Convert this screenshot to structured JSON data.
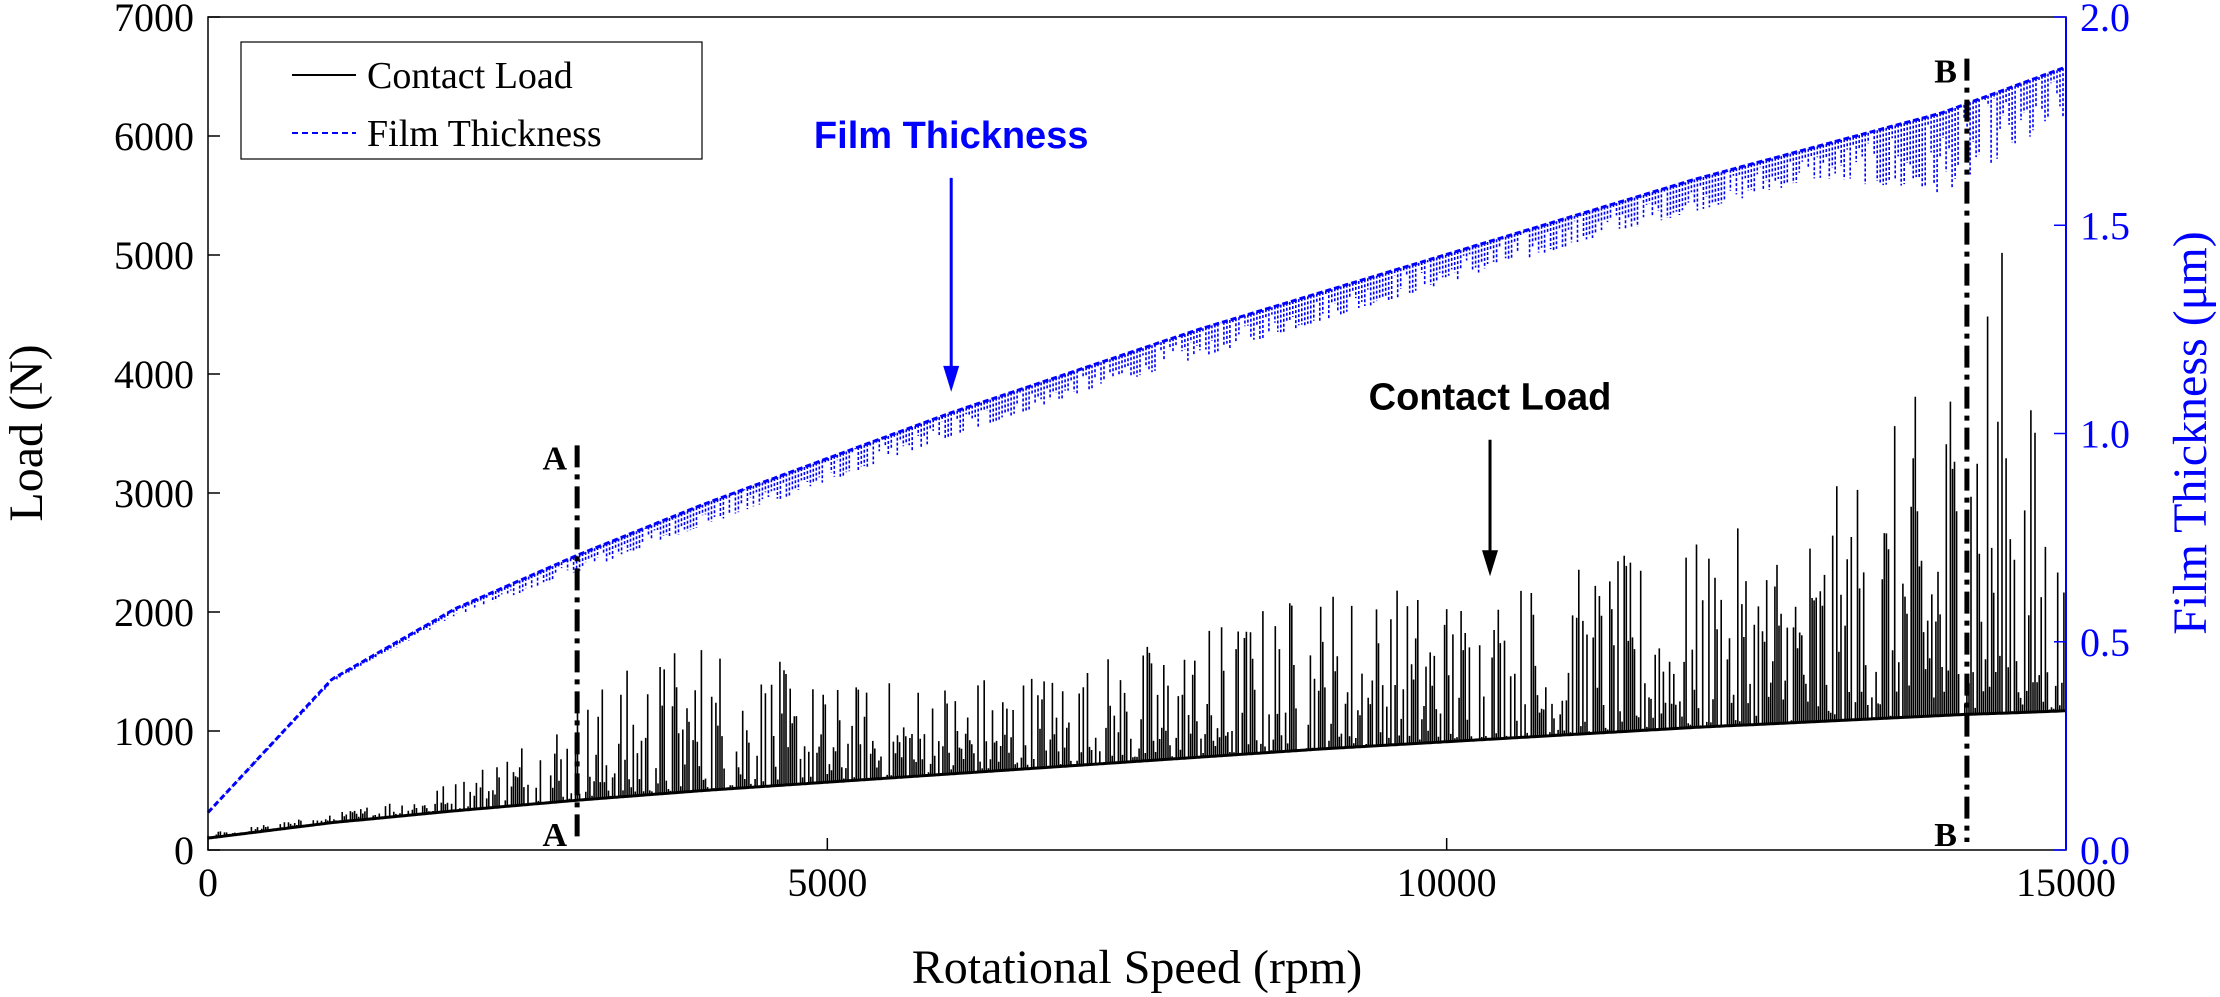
{
  "chart_data": {
    "type": "line",
    "title": "",
    "xlabel": "Rotational Speed (rpm)",
    "ylabel": "Load (N)",
    "y2label": "Film Thickness (μm)",
    "xlim": [
      0,
      15000
    ],
    "ylim": [
      0,
      7000
    ],
    "y2lim": [
      0,
      2.0
    ],
    "xticks": [
      "0",
      "5000",
      "10000",
      "15000"
    ],
    "yticks": [
      "0",
      "1000",
      "2000",
      "3000",
      "4000",
      "5000",
      "6000",
      "7000"
    ],
    "y2ticks": [
      "0.0",
      "0.5",
      "1.0",
      "1.5",
      "2.0"
    ],
    "grid": false,
    "legend": {
      "placement": "top-left",
      "entries": [
        {
          "label": "Contact Load",
          "color": "#000000",
          "style": "solid"
        },
        {
          "label": "Film Thickness",
          "color": "#0000ff",
          "style": "dashed"
        }
      ]
    },
    "colors": {
      "load": "#000000",
      "film": "#0000ff"
    },
    "series": [
      {
        "name": "Contact Load",
        "axis": "left",
        "x": [
          0,
          1000,
          2000,
          3000,
          4000,
          5000,
          6000,
          7000,
          8000,
          9000,
          10000,
          11000,
          12000,
          13000,
          14000,
          14200,
          14500,
          15000
        ],
        "baseline": [
          100,
          230,
          330,
          420,
          500,
          570,
          640,
          710,
          780,
          850,
          910,
          970,
          1030,
          1080,
          1130,
          1140,
          1150,
          1170
        ],
        "peak": [
          150,
          300,
          600,
          1350,
          1900,
          1400,
          1500,
          1600,
          1900,
          2300,
          2250,
          2400,
          2600,
          2900,
          4100,
          5200,
          5150,
          2400
        ]
      },
      {
        "name": "Film Thickness",
        "axis": "right",
        "x": [
          0,
          1000,
          2000,
          3000,
          4000,
          5000,
          6000,
          7000,
          8000,
          9000,
          10000,
          11000,
          12000,
          13000,
          14000,
          15000
        ],
        "upper": [
          0.09,
          0.41,
          0.58,
          0.71,
          0.83,
          0.94,
          1.05,
          1.15,
          1.25,
          1.34,
          1.43,
          1.52,
          1.61,
          1.69,
          1.77,
          1.88
        ],
        "lower": [
          0.09,
          0.4,
          0.56,
          0.66,
          0.77,
          0.87,
          0.98,
          1.08,
          1.17,
          1.26,
          1.35,
          1.44,
          1.52,
          1.6,
          1.54,
          1.74
        ]
      }
    ],
    "annotations": [
      {
        "text": "Film Thickness",
        "color": "#0000ff",
        "x": 6000,
        "y": 3850,
        "label_y": 5900
      },
      {
        "text": "Contact Load",
        "color": "#000000",
        "x": 10350,
        "y": 2300,
        "label_y": 3700
      }
    ],
    "markers": [
      {
        "top_label": "A",
        "bottom_label": "A",
        "x": 2980,
        "y_top": 3400
      },
      {
        "top_label": "B",
        "bottom_label": "B",
        "x": 14200,
        "y_top": 6650
      }
    ]
  }
}
